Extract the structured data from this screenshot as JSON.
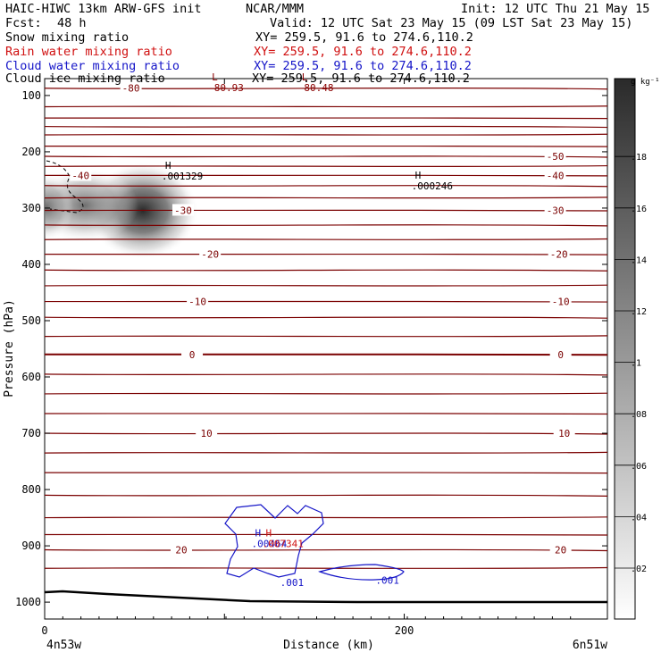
{
  "header": {
    "model": "HAIC-HIWC 13km ARW-GFS init",
    "org": "NCAR/MMM",
    "init": "Init: 12 UTC Thu 21 May 15",
    "fcst_label": "Fcst:",
    "fcst_value": "48 h",
    "valid": "Valid: 12 UTC Sat 23 May 15 (09 LST Sat 23 May 15)"
  },
  "fields": [
    {
      "name": "Snow mixing ratio",
      "xy": "XY= 259.5, 91.6 to 274.6,110.2",
      "color": "#000000"
    },
    {
      "name": "Rain water mixing ratio",
      "xy": "XY= 259.5, 91.6 to 274.6,110.2",
      "color": "#d01010"
    },
    {
      "name": "Cloud water mixing ratio",
      "xy": "XY= 259.5, 91.6 to 274.6,110.2",
      "color": "#1515c8"
    },
    {
      "name": "Cloud ice mixing ratio",
      "xy": "XY= 259.5, 91.6 to 274.6,110.2",
      "color": "#000000"
    }
  ],
  "colorbar": {
    "unit": "g kg⁻¹",
    "ticks": [
      ".02",
      ".04",
      ".06",
      ".08",
      ".1",
      ".12",
      ".14",
      ".16",
      ".18"
    ]
  },
  "chart_data": {
    "type": "cross-section",
    "ylabel": "Pressure (hPa)",
    "xlabel": "Distance (km)",
    "x_start_label": "4n53w",
    "x_end_label": "6n51w",
    "x_ticks": [
      0,
      100,
      200
    ],
    "x_tick_labels": [
      "0",
      "",
      "200"
    ],
    "y_ticks": [
      100,
      200,
      300,
      400,
      500,
      600,
      700,
      800,
      900,
      1000
    ],
    "y_tick_labels": [
      "100",
      "200",
      "300",
      "400",
      "500",
      "600",
      "700",
      "800",
      "900",
      "1000"
    ],
    "xlim": [
      0,
      313
    ],
    "ylim": [
      1030,
      70
    ],
    "temperature_labels": [
      {
        "value": "-80",
        "x": 48,
        "p": 87
      },
      {
        "value": "-50",
        "x": 284,
        "p": 208
      },
      {
        "value": "-40",
        "x": 20,
        "p": 242
      },
      {
        "value": "-40",
        "x": 284,
        "p": 242
      },
      {
        "value": "-30",
        "x": 77,
        "p": 304
      },
      {
        "value": "-30",
        "x": 284,
        "p": 304
      },
      {
        "value": "-20",
        "x": 92,
        "p": 382
      },
      {
        "value": "-20",
        "x": 286,
        "p": 382
      },
      {
        "value": "-10",
        "x": 85,
        "p": 466
      },
      {
        "value": "-10",
        "x": 287,
        "p": 466
      },
      {
        "value": "0",
        "x": 82,
        "p": 560
      },
      {
        "value": "0",
        "x": 287,
        "p": 560
      },
      {
        "value": "10",
        "x": 90,
        "p": 700
      },
      {
        "value": "10",
        "x": 289,
        "p": 700
      },
      {
        "value": "20",
        "x": 76,
        "p": 907
      },
      {
        "value": "20",
        "x": 287,
        "p": 907
      }
    ],
    "extrema": [
      {
        "type": "L",
        "value": "-80.93",
        "x": 91,
        "p": 83,
        "color": "#8b0000"
      },
      {
        "type": "L",
        "value": "-80.48",
        "x": 141,
        "p": 83,
        "color": "#8b0000"
      },
      {
        "type": "H",
        "value": ".001329",
        "x": 65,
        "p": 240,
        "color": "#000000"
      },
      {
        "type": "H",
        "value": ".000246",
        "x": 204,
        "p": 257,
        "color": "#000000"
      },
      {
        "type": "H",
        "value": ".00464",
        "x": 115,
        "p": 893,
        "color": "#1515c8"
      },
      {
        "type": "H",
        "value": ".007341",
        "x": 121,
        "p": 893,
        "color": "#d01010"
      }
    ],
    "cloud_water_labels": [
      {
        "value": ".001",
        "x": 131,
        "p": 971
      },
      {
        "value": ".001",
        "x": 184,
        "p": 967
      }
    ]
  }
}
